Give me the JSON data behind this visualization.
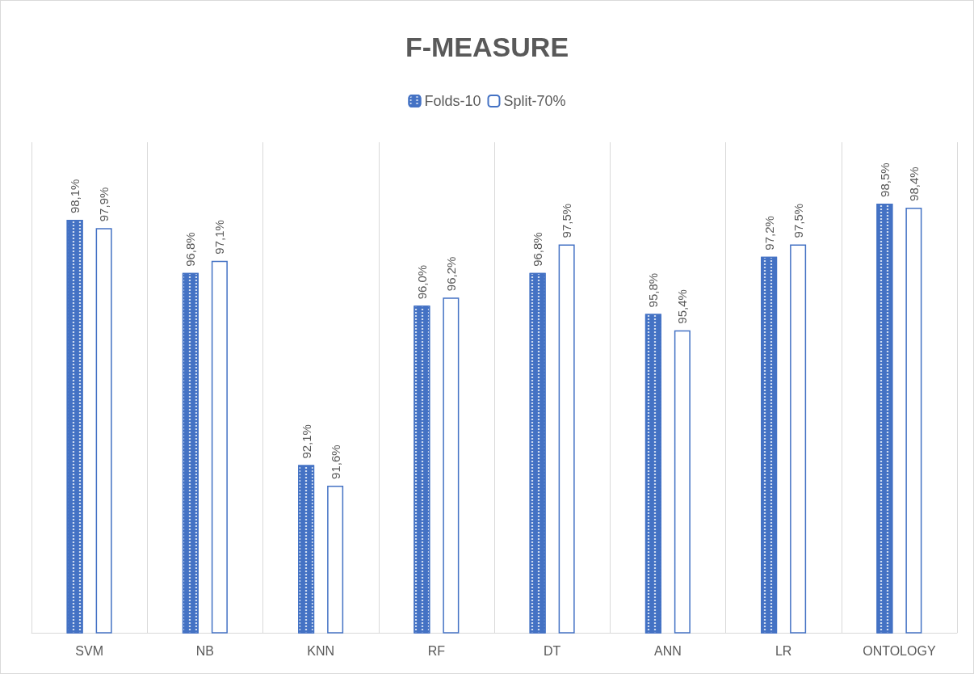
{
  "chart_data": {
    "type": "bar",
    "title": "F-MEASURE",
    "categories": [
      "SVM",
      "NB",
      "KNN",
      "RF",
      "DT",
      "ANN",
      "LR",
      "ONTOLOGY"
    ],
    "series": [
      {
        "name": "Folds-10",
        "color": "#4472c4",
        "values": [
          98.1,
          96.8,
          92.1,
          96.0,
          96.8,
          95.8,
          97.2,
          98.5
        ],
        "value_labels": [
          "98,1%",
          "96,8%",
          "92,1%",
          "96,0%",
          "96,8%",
          "95,8%",
          "97,2%",
          "98,5%"
        ]
      },
      {
        "name": "Split-70%",
        "color": "#4472c4",
        "values": [
          97.9,
          97.1,
          91.6,
          96.2,
          97.5,
          95.4,
          97.5,
          98.4
        ],
        "value_labels": [
          "97,9%",
          "97,1%",
          "91,6%",
          "96,2%",
          "97,5%",
          "95,4%",
          "97,5%",
          "98,4%"
        ]
      }
    ],
    "ylim": [
      88,
      100
    ],
    "grid": "x",
    "legend": "top",
    "tick_labels": "x"
  }
}
